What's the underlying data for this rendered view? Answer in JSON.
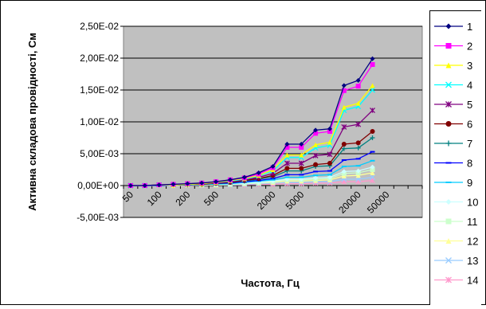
{
  "chart_data": {
    "type": "line",
    "title": "",
    "xlabel": "Частота, Гц",
    "ylabel": "Активна складова провідності, См",
    "ylim": [
      -0.005,
      0.025
    ],
    "yticks": [
      "-5,00E-03",
      "0,00E+00",
      "5,00E-03",
      "1,00E-02",
      "1,50E-02",
      "2,00E-02",
      "2,50E-02"
    ],
    "ytick_values": [
      -0.005,
      0,
      0.005,
      0.01,
      0.015,
      0.02,
      0.025
    ],
    "x": [
      50,
      70,
      100,
      150,
      200,
      300,
      500,
      700,
      1000,
      1500,
      2000,
      3000,
      5000,
      7000,
      10000,
      15000,
      20000,
      30000,
      50000,
      70000,
      100000
    ],
    "xtick_labels": [
      "50",
      "100",
      "200",
      "500",
      "2000",
      "5000",
      "20000",
      "50000"
    ],
    "xtick_indices": [
      0,
      2,
      4,
      6,
      10,
      12,
      16,
      18
    ],
    "grid": "horizontal",
    "legend_position": "right",
    "plot_background": "#c0c0c0",
    "series": [
      {
        "name": "1",
        "color": "#000080",
        "marker": "diamond",
        "values": [
          0,
          0,
          0.0001,
          0.0002,
          0.0003,
          0.0004,
          0.0006,
          0.0009,
          0.0013,
          0.002,
          0.003,
          0.0065,
          0.0065,
          0.0087,
          0.0089,
          0.0157,
          0.0165,
          0.0199,
          null,
          null,
          null
        ]
      },
      {
        "name": "2",
        "color": "#ff00ff",
        "marker": "square",
        "values": [
          0,
          0,
          0.0001,
          0.0002,
          0.0003,
          0.0004,
          0.0006,
          0.0009,
          0.0012,
          0.0018,
          0.0028,
          0.006,
          0.006,
          0.0082,
          0.0085,
          0.0149,
          0.0156,
          0.019,
          null,
          null,
          null
        ]
      },
      {
        "name": "3",
        "color": "#ffff00",
        "marker": "triangle",
        "values": [
          0,
          0,
          0.0001,
          0.0001,
          0.0002,
          0.0003,
          0.0005,
          0.0008,
          0.0011,
          0.0016,
          0.0025,
          0.0048,
          0.0048,
          0.0064,
          0.0068,
          0.0123,
          0.0129,
          0.0157,
          null,
          null,
          null
        ]
      },
      {
        "name": "4",
        "color": "#00ffff",
        "marker": "x",
        "values": [
          0,
          0,
          0.0001,
          0.0001,
          0.0002,
          0.0003,
          0.0005,
          0.0007,
          0.001,
          0.0015,
          0.0023,
          0.0044,
          0.0044,
          0.0059,
          0.0063,
          0.0118,
          0.0124,
          0.015,
          null,
          null,
          null
        ]
      },
      {
        "name": "5",
        "color": "#800080",
        "marker": "star",
        "values": [
          0,
          0,
          0.0001,
          0.0001,
          0.0002,
          0.0003,
          0.0004,
          0.0006,
          0.0009,
          0.0013,
          0.0019,
          0.0035,
          0.0035,
          0.0047,
          0.0049,
          0.0092,
          0.0096,
          0.0118,
          null,
          null,
          null
        ]
      },
      {
        "name": "6",
        "color": "#800000",
        "marker": "circle",
        "values": [
          0,
          0,
          0.0001,
          0.0001,
          0.0002,
          0.0002,
          0.0004,
          0.0005,
          0.0008,
          0.0011,
          0.0016,
          0.0027,
          0.0027,
          0.0033,
          0.0035,
          0.0065,
          0.0067,
          0.0085,
          null,
          null,
          null
        ]
      },
      {
        "name": "7",
        "color": "#008080",
        "marker": "plus",
        "values": [
          0,
          0,
          0.0001,
          0.0001,
          0.0001,
          0.0002,
          0.0003,
          0.0005,
          0.0007,
          0.001,
          0.0014,
          0.0023,
          0.0023,
          0.003,
          0.0031,
          0.0058,
          0.0059,
          0.0075,
          null,
          null,
          null
        ]
      },
      {
        "name": "8",
        "color": "#0000ff",
        "marker": "dash",
        "values": [
          0,
          0,
          0,
          0.0001,
          0.0001,
          0.0002,
          0.0003,
          0.0004,
          0.0006,
          0.0008,
          0.0011,
          0.0017,
          0.0017,
          0.0022,
          0.0023,
          0.004,
          0.0042,
          0.0053,
          null,
          null,
          null
        ]
      },
      {
        "name": "9",
        "color": "#00ccff",
        "marker": "dash",
        "values": [
          0,
          0,
          0,
          0.0001,
          0.0001,
          0.0002,
          0.0002,
          0.0003,
          0.0005,
          0.0007,
          0.0009,
          0.0013,
          0.0013,
          0.0016,
          0.0017,
          0.003,
          0.0031,
          0.0039,
          null,
          null,
          null
        ]
      },
      {
        "name": "10",
        "color": "#ccffff",
        "marker": "diamond",
        "values": [
          0,
          0,
          0,
          0.0001,
          0.0001,
          0.0001,
          0.0002,
          0.0003,
          0.0004,
          0.0005,
          0.0007,
          0.001,
          0.001,
          0.0012,
          0.0013,
          0.0022,
          0.0023,
          0.0029,
          null,
          null,
          null
        ]
      },
      {
        "name": "11",
        "color": "#ccffcc",
        "marker": "square",
        "values": [
          0,
          0,
          0,
          0.0001,
          0.0001,
          0.0001,
          0.0002,
          0.0002,
          0.0003,
          0.0004,
          0.0006,
          0.0009,
          0.0009,
          0.001,
          0.0011,
          0.0019,
          0.002,
          0.0025,
          null,
          null,
          null
        ]
      },
      {
        "name": "12",
        "color": "#ffff99",
        "marker": "triangle",
        "values": [
          0,
          0,
          0,
          0,
          0.0001,
          0.0001,
          0.0001,
          0.0002,
          0.0003,
          0.0004,
          0.0005,
          0.0007,
          0.0007,
          0.0008,
          0.0009,
          0.0015,
          0.0016,
          0.002,
          null,
          null,
          null
        ]
      },
      {
        "name": "13",
        "color": "#99ccff",
        "marker": "x",
        "values": [
          0,
          0,
          0,
          0,
          0.0001,
          0.0001,
          0.0001,
          0.0001,
          0.0002,
          0.0003,
          0.0004,
          0.0005,
          0.0005,
          0.0006,
          0.0006,
          0.001,
          0.001,
          0.0013,
          null,
          null,
          null
        ]
      },
      {
        "name": "14",
        "color": "#ff99cc",
        "marker": "star",
        "values": [
          0,
          0,
          0,
          0,
          0,
          0.0001,
          0.0001,
          0.0001,
          0.0001,
          0.0002,
          0.0002,
          0.0003,
          0.0003,
          0.0004,
          0.0004,
          0.0006,
          0.0006,
          0.0008,
          null,
          null,
          null
        ]
      }
    ]
  }
}
